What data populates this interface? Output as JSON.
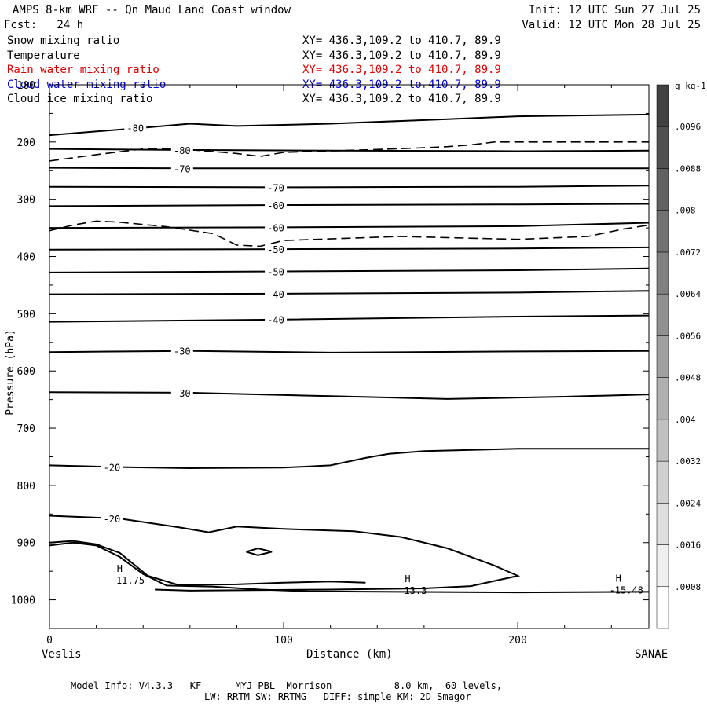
{
  "header": {
    "title": "AMPS 8-km WRF -- Qn Maud Land Coast window",
    "init": "Init: 12 UTC Sun 27 Jul 25",
    "fcst": "Fcst:   24 h",
    "valid": "Valid: 12 UTC Mon 28 Jul 25"
  },
  "legend": [
    {
      "name": "Snow mixing ratio",
      "xy": "XY= 436.3,109.2 to 410.7, 89.9",
      "color": "#000000"
    },
    {
      "name": "Temperature",
      "xy": "XY= 436.3,109.2 to 410.7, 89.9",
      "color": "#000000"
    },
    {
      "name": "Rain water mixing ratio",
      "xy": "XY= 436.3,109.2 to 410.7, 89.9",
      "color": "#e00000"
    },
    {
      "name": "Cloud water mixing ratio",
      "xy": "XY= 436.3,109.2 to 410.7, 89.9",
      "color": "#0000e0"
    },
    {
      "name": "Cloud ice mixing ratio",
      "xy": "XY= 436.3,109.2 to 410.7, 89.9",
      "color": "#000000"
    }
  ],
  "footer": {
    "line1": "Model Info: V4.3.3   KF      MYJ PBL  Morrison           8.0 km,  60 levels,",
    "line2": "LW: RRTM SW: RRTMG   DIFF: simple KM: 2D Smagor"
  },
  "chart_data": {
    "type": "contour",
    "xlabel": "Distance (km)",
    "ylabel": "Pressure (hPa)",
    "x_left_label": "Veslis",
    "x_right_label": "SANAE",
    "xlim": [
      0,
      256
    ],
    "ylim": [
      1050,
      100
    ],
    "y_ticks": [
      100,
      200,
      300,
      400,
      500,
      600,
      700,
      800,
      900,
      1000
    ],
    "x_ticks": [
      0,
      100,
      200
    ],
    "colorbar": {
      "unit": "g kg-1",
      "ticks": [
        ".0008",
        ".0016",
        ".0024",
        ".0032",
        ".004",
        ".0048",
        ".0056",
        ".0064",
        ".0072",
        ".008",
        ".0088",
        ".0096"
      ]
    },
    "temperature_contours": [
      {
        "value": -80,
        "points": [
          [
            0,
            188
          ],
          [
            40,
            175
          ],
          [
            60,
            168
          ],
          [
            80,
            172
          ],
          [
            120,
            168
          ],
          [
            170,
            160
          ],
          [
            200,
            155
          ],
          [
            256,
            152
          ]
        ]
      },
      {
        "value": -80,
        "points": [
          [
            0,
            212
          ],
          [
            60,
            214
          ],
          [
            120,
            215
          ],
          [
            200,
            216
          ],
          [
            256,
            215
          ]
        ]
      },
      {
        "value": -70,
        "points": [
          [
            0,
            245
          ],
          [
            60,
            246
          ],
          [
            140,
            246
          ],
          [
            256,
            246
          ]
        ]
      },
      {
        "value": -70,
        "points": [
          [
            0,
            278
          ],
          [
            100,
            279
          ],
          [
            200,
            278
          ],
          [
            256,
            276
          ]
        ]
      },
      {
        "value": -60,
        "points": [
          [
            0,
            312
          ],
          [
            100,
            310
          ],
          [
            200,
            309
          ],
          [
            256,
            308
          ]
        ]
      },
      {
        "value": -60,
        "points": [
          [
            0,
            350
          ],
          [
            100,
            349
          ],
          [
            200,
            347
          ],
          [
            256,
            341
          ]
        ]
      },
      {
        "value": -50,
        "points": [
          [
            0,
            388
          ],
          [
            100,
            387
          ],
          [
            200,
            386
          ],
          [
            256,
            384
          ]
        ]
      },
      {
        "value": -50,
        "points": [
          [
            0,
            428
          ],
          [
            100,
            426
          ],
          [
            200,
            424
          ],
          [
            256,
            421
          ]
        ]
      },
      {
        "value": -40,
        "points": [
          [
            0,
            466
          ],
          [
            100,
            465
          ],
          [
            200,
            463
          ],
          [
            256,
            460
          ]
        ]
      },
      {
        "value": -40,
        "points": [
          [
            0,
            514
          ],
          [
            100,
            510
          ],
          [
            200,
            505
          ],
          [
            256,
            503
          ]
        ]
      },
      {
        "value": -30,
        "points": [
          [
            0,
            567
          ],
          [
            60,
            565
          ],
          [
            120,
            568
          ],
          [
            200,
            566
          ],
          [
            256,
            565
          ]
        ]
      },
      {
        "value": -30,
        "points": [
          [
            0,
            637
          ],
          [
            60,
            638
          ],
          [
            120,
            644
          ],
          [
            170,
            649
          ],
          [
            220,
            645
          ],
          [
            256,
            641
          ]
        ]
      },
      {
        "value": -20,
        "points": [
          [
            0,
            765
          ],
          [
            30,
            768
          ],
          [
            60,
            770
          ],
          [
            100,
            769
          ],
          [
            120,
            765
          ],
          [
            135,
            752
          ],
          [
            145,
            745
          ],
          [
            160,
            740
          ],
          [
            200,
            736
          ],
          [
            256,
            736
          ]
        ]
      },
      {
        "value": -20,
        "points": [
          [
            0,
            853
          ],
          [
            30,
            858
          ],
          [
            55,
            873
          ],
          [
            68,
            882
          ],
          [
            80,
            872
          ],
          [
            100,
            876
          ],
          [
            130,
            880
          ],
          [
            150,
            890
          ],
          [
            170,
            910
          ],
          [
            190,
            940
          ],
          [
            200,
            958
          ],
          [
            180,
            976
          ],
          [
            160,
            980
          ],
          [
            120,
            982
          ],
          [
            60,
            984
          ],
          [
            45,
            982
          ]
        ]
      },
      {
        "value": -20,
        "points": [
          [
            84,
            916
          ],
          [
            89,
            910
          ],
          [
            95,
            916
          ],
          [
            89,
            922
          ],
          [
            84,
            916
          ]
        ]
      },
      {
        "value": -20,
        "points": [
          [
            0,
            905
          ],
          [
            10,
            900
          ],
          [
            20,
            905
          ],
          [
            30,
            925
          ],
          [
            40,
            955
          ],
          [
            50,
            975
          ],
          [
            70,
            977
          ],
          [
            90,
            982
          ],
          [
            110,
            985
          ],
          [
            150,
            986
          ],
          [
            200,
            987
          ],
          [
            256,
            986
          ]
        ]
      },
      {
        "value": -20,
        "points": [
          [
            0,
            900
          ],
          [
            10,
            897
          ],
          [
            20,
            903
          ],
          [
            30,
            918
          ],
          [
            42,
            958
          ],
          [
            55,
            974
          ],
          [
            80,
            973
          ],
          [
            100,
            970
          ],
          [
            120,
            968
          ],
          [
            135,
            970
          ]
        ]
      }
    ],
    "dashed_contours": [
      {
        "points": [
          [
            0,
            233
          ],
          [
            20,
            222
          ],
          [
            40,
            212
          ],
          [
            55,
            212
          ],
          [
            65,
            215
          ],
          [
            80,
            220
          ],
          [
            90,
            225
          ],
          [
            100,
            218
          ],
          [
            140,
            213
          ],
          [
            160,
            210
          ],
          [
            170,
            208
          ],
          [
            180,
            205
          ],
          [
            190,
            200
          ],
          [
            200,
            200
          ],
          [
            256,
            200
          ]
        ]
      },
      {
        "points": [
          [
            0,
            355
          ],
          [
            10,
            345
          ],
          [
            20,
            338
          ],
          [
            30,
            340
          ],
          [
            50,
            348
          ],
          [
            70,
            360
          ],
          [
            80,
            380
          ],
          [
            90,
            382
          ],
          [
            100,
            372
          ],
          [
            150,
            365
          ],
          [
            200,
            370
          ],
          [
            230,
            365
          ],
          [
            245,
            352
          ],
          [
            256,
            345
          ]
        ]
      }
    ],
    "extrema": [
      {
        "label": "H",
        "value": "-11.75",
        "x": 30,
        "p": 951
      },
      {
        "label": "H",
        "value": "13.3",
        "x": 153,
        "p": 969
      },
      {
        "label": "H",
        "value": "-15.48",
        "x": 243,
        "p": 968
      }
    ]
  }
}
